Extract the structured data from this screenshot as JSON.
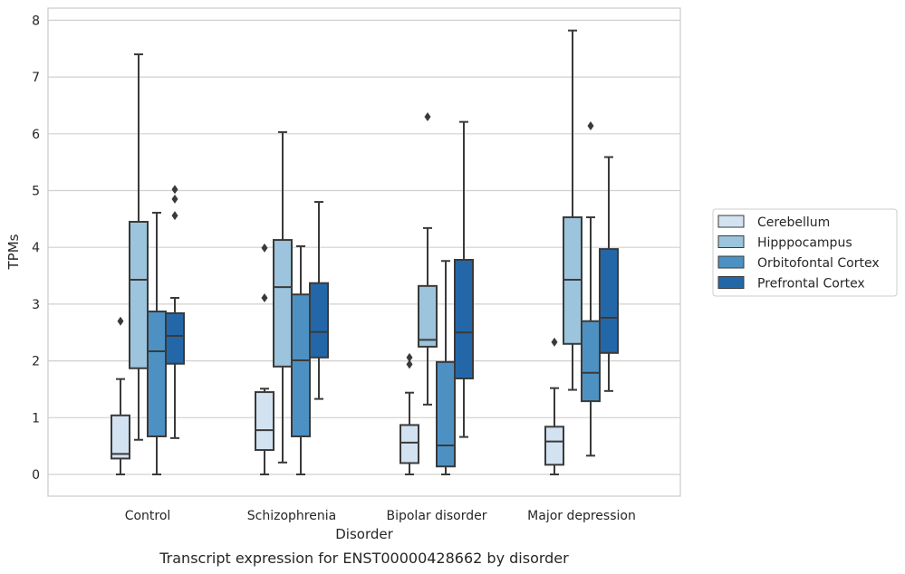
{
  "chart_data": {
    "type": "boxplot",
    "title": "Transcript expression for ENST00000428662 by disorder",
    "xlabel": "Disorder",
    "ylabel": "TPMs",
    "ylim": [
      -0.38,
      8.22
    ],
    "yticks": [
      0,
      1,
      2,
      3,
      4,
      5,
      6,
      7,
      8
    ],
    "grid": true,
    "legend_position": "right",
    "categories": [
      "Control",
      "Schizophrenia",
      "Bipolar disorder",
      "Major depression"
    ],
    "series": [
      {
        "name": "Cerebellum",
        "color": "#d3e2f1",
        "boxes": [
          {
            "whislo": 0.0,
            "q1": 0.28,
            "med": 0.36,
            "q3": 1.04,
            "whishi": 1.68,
            "fliers": [
              2.7
            ]
          },
          {
            "whislo": 0.0,
            "q1": 0.43,
            "med": 0.78,
            "q3": 1.45,
            "whishi": 1.51,
            "fliers": [
              3.11,
              3.99
            ]
          },
          {
            "whislo": 0.0,
            "q1": 0.2,
            "med": 0.56,
            "q3": 0.87,
            "whishi": 1.44,
            "fliers": [
              1.94,
              2.06
            ]
          },
          {
            "whislo": 0.0,
            "q1": 0.17,
            "med": 0.58,
            "q3": 0.84,
            "whishi": 1.52,
            "fliers": [
              2.33
            ]
          }
        ]
      },
      {
        "name": "Hipppocampus",
        "color": "#9cc4dc",
        "boxes": [
          {
            "whislo": 0.61,
            "q1": 1.87,
            "med": 3.43,
            "q3": 4.45,
            "whishi": 7.4,
            "fliers": []
          },
          {
            "whislo": 0.21,
            "q1": 1.9,
            "med": 3.3,
            "q3": 4.13,
            "whishi": 6.03,
            "fliers": []
          },
          {
            "whislo": 1.23,
            "q1": 2.25,
            "med": 2.37,
            "q3": 3.32,
            "whishi": 4.34,
            "fliers": [
              6.3
            ]
          },
          {
            "whislo": 1.49,
            "q1": 2.3,
            "med": 3.43,
            "q3": 4.53,
            "whishi": 7.82,
            "fliers": []
          }
        ]
      },
      {
        "name": "Orbitofontal Cortex",
        "color": "#4d91c3",
        "boxes": [
          {
            "whislo": 0.0,
            "q1": 0.67,
            "med": 2.17,
            "q3": 2.87,
            "whishi": 4.61,
            "fliers": []
          },
          {
            "whislo": 0.0,
            "q1": 0.67,
            "med": 2.01,
            "q3": 3.17,
            "whishi": 4.02,
            "fliers": []
          },
          {
            "whislo": 0.0,
            "q1": 0.14,
            "med": 0.51,
            "q3": 1.98,
            "whishi": 3.76,
            "fliers": []
          },
          {
            "whislo": 0.33,
            "q1": 1.29,
            "med": 1.79,
            "q3": 2.7,
            "whishi": 4.53,
            "fliers": [
              6.14
            ]
          }
        ]
      },
      {
        "name": "Prefrontal Cortex",
        "color": "#2467a9",
        "boxes": [
          {
            "whislo": 0.64,
            "q1": 1.95,
            "med": 2.44,
            "q3": 2.84,
            "whishi": 3.11,
            "fliers": [
              4.56,
              4.85,
              5.02
            ]
          },
          {
            "whislo": 1.33,
            "q1": 2.06,
            "med": 2.51,
            "q3": 3.37,
            "whishi": 4.8,
            "fliers": []
          },
          {
            "whislo": 0.66,
            "q1": 1.69,
            "med": 2.5,
            "q3": 3.78,
            "whishi": 6.21,
            "fliers": []
          },
          {
            "whislo": 1.47,
            "q1": 2.14,
            "med": 2.76,
            "q3": 3.97,
            "whishi": 5.59,
            "fliers": []
          }
        ]
      }
    ]
  }
}
